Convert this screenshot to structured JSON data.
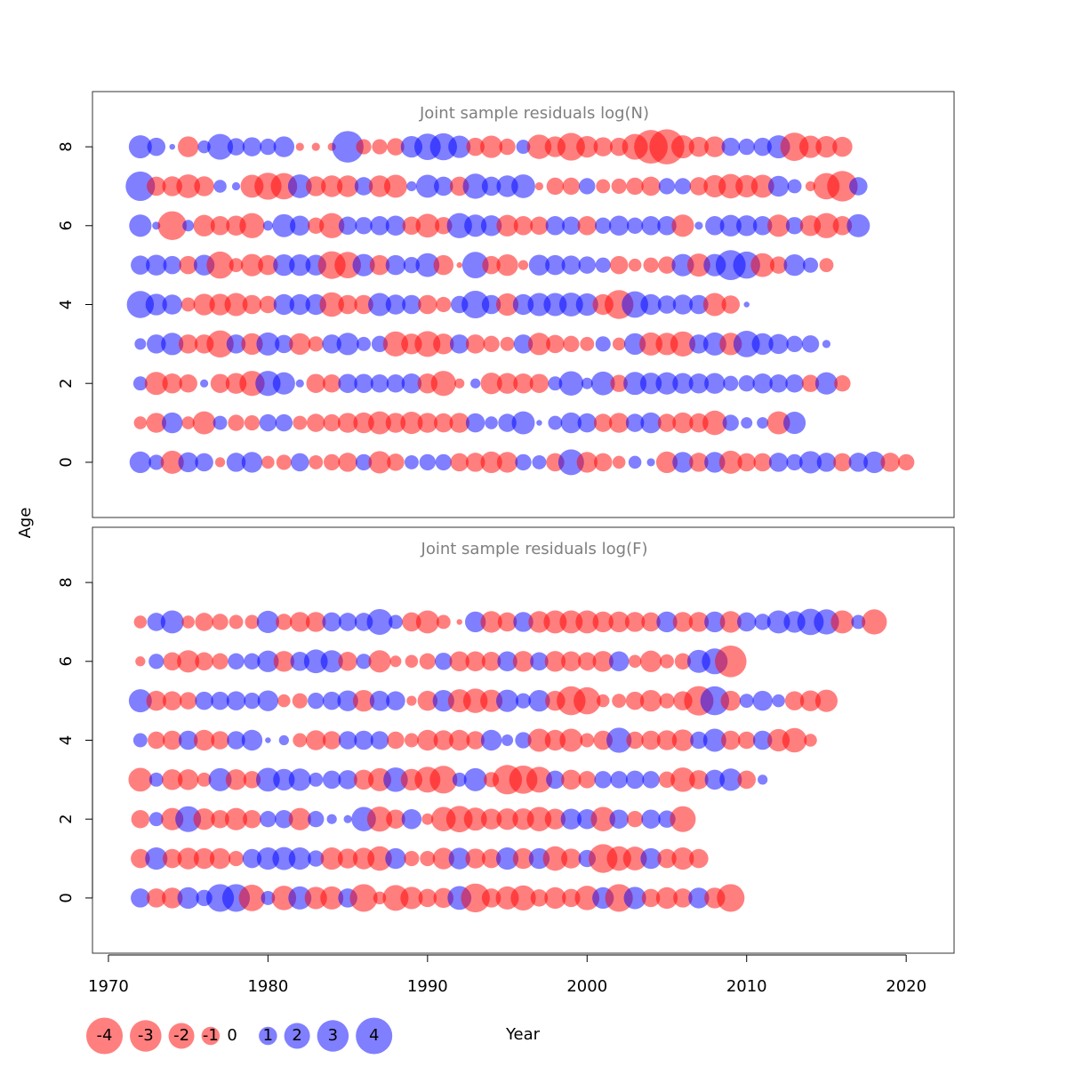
{
  "chart_data": {
    "type": "scatter",
    "subtype": "bubble",
    "xlabel": "Year",
    "ylabel": "Age",
    "xlim": [
      1969,
      2023
    ],
    "ylim": [
      -1.4,
      9.4
    ],
    "x_ticks": [
      1970,
      1980,
      1990,
      2000,
      2010,
      2020
    ],
    "y_ticks": [
      0,
      2,
      4,
      6,
      8
    ],
    "colors": {
      "positive": "#0000ff",
      "negative": "#ff0000",
      "opacity": 0.5
    },
    "size_scale_max": 4.6,
    "legend": {
      "values": [
        -4,
        -3,
        -2,
        -1,
        0,
        1,
        2,
        3,
        4
      ],
      "labels": [
        "-4",
        "-3",
        "-2",
        "-1",
        "0",
        "1",
        "2",
        "3",
        "4"
      ]
    },
    "panels": [
      {
        "title": "Joint sample residuals log(N)",
        "year_start": 1972,
        "ages": [
          8,
          7,
          6,
          5,
          4,
          3,
          2,
          1,
          0
        ],
        "residuals": [
          [
            1.6,
            1.0,
            0.1,
            -1.3,
            0.5,
            2.0,
            0.9,
            1.1,
            0.8,
            1.3,
            -0.2,
            -0.2,
            -0.2,
            3.0,
            -0.7,
            -0.7,
            -0.9,
            1.4,
            2.1,
            2.2,
            1.5,
            -1.0,
            -1.5,
            -0.8,
            0.6,
            -1.8,
            -1.3,
            -2.3,
            -1.4,
            -1.1,
            -1.0,
            -2.0,
            -3.4,
            -3.7,
            -1.6,
            -1.2,
            -1.3,
            1.0,
            0.8,
            1.0,
            1.6,
            -2.4,
            -1.5,
            -1.4,
            -1.2
          ],
          [
            2.6,
            -1.1,
            -1.2,
            -1.7,
            -1.2,
            0.5,
            0.2,
            -1.6,
            -2.2,
            -2.1,
            1.7,
            -1.2,
            -1.4,
            -1.4,
            1.0,
            -1.4,
            -1.6,
            0.3,
            1.6,
            1.1,
            -1.1,
            1.9,
            1.1,
            1.4,
            1.7,
            -0.2,
            -0.9,
            -0.9,
            0.8,
            -0.6,
            -0.7,
            -0.9,
            -1.1,
            0.8,
            0.8,
            -1.0,
            -1.5,
            -1.8,
            -1.5,
            -1.6,
            1.3,
            0.6,
            -0.3,
            -2.1,
            -2.8,
            1.0
          ],
          [
            1.5,
            0.2,
            -2.5,
            0.4,
            -1.4,
            -1.1,
            -1.2,
            -1.9,
            0.3,
            1.6,
            1.2,
            -0.8,
            -1.9,
            1.0,
            0.9,
            1.1,
            1.2,
            -1.0,
            -1.7,
            -0.9,
            1.9,
            1.5,
            1.3,
            -1.4,
            -1.1,
            -1.0,
            1.1,
            1.0,
            -1.1,
            0.8,
            1.2,
            0.8,
            1.1,
            1.1,
            -1.5,
            0.2,
            1.1,
            1.4,
            1.3,
            1.1,
            -1.5,
            0.9,
            -1.3,
            -1.9,
            -1.1,
            1.6
          ],
          [
            1.1,
            1.3,
            1.0,
            -1.0,
            1.3,
            -2.2,
            -0.6,
            -1.5,
            -1.2,
            1.4,
            1.4,
            1.3,
            -2.3,
            -2.1,
            1.5,
            -1.2,
            1.2,
            0.8,
            1.7,
            -1.2,
            -0.1,
            2.1,
            -1.0,
            -1.4,
            -0.3,
            1.3,
            1.2,
            1.1,
            0.9,
            0.7,
            -1.0,
            -0.5,
            -0.7,
            -0.9,
            1.5,
            -1.6,
            1.5,
            2.7,
            2.2,
            -1.7,
            -0.9,
            1.4,
            0.7,
            -0.6
          ],
          [
            2.2,
            1.4,
            1.2,
            -0.6,
            -1.4,
            -1.4,
            -1.6,
            -1.1,
            -0.9,
            1.3,
            1.3,
            1.3,
            -1.8,
            -1.1,
            -1.1,
            1.6,
            1.2,
            1.1,
            -1.1,
            -0.7,
            0.9,
            2.3,
            1.1,
            -1.5,
            1.3,
            1.6,
            1.6,
            1.7,
            1.5,
            -1.3,
            -2.5,
            2.1,
            1.3,
            1.0,
            1.2,
            1.1,
            -1.6,
            -1.0,
            0.1
          ],
          [
            0.4,
            1.1,
            1.5,
            -1.1,
            -1.1,
            -2.2,
            1.1,
            -1.4,
            1.6,
            1.0,
            -1.4,
            -0.7,
            1.1,
            1.5,
            0.6,
            0.8,
            -1.9,
            -1.3,
            -2.0,
            -1.3,
            1.1,
            -1.1,
            -0.8,
            -0.6,
            1.1,
            -1.5,
            -1.0,
            -0.8,
            -0.6,
            0.7,
            -0.5,
            1.4,
            -1.6,
            -1.5,
            -1.9,
            1.1,
            1.6,
            -1.5,
            2.1,
            1.4,
            1.2,
            0.8,
            0.9,
            0.2
          ],
          [
            0.6,
            -1.6,
            -1.2,
            -1.0,
            0.2,
            -1.1,
            -1.3,
            -1.9,
            1.9,
            1.5,
            0.2,
            -1.1,
            -1.0,
            1.1,
            1.1,
            1.0,
            1.0,
            1.2,
            -1.2,
            -1.9,
            -0.3,
            0.3,
            -1.4,
            -1.3,
            -1.2,
            -1.1,
            0.6,
            1.8,
            0.4,
            1.7,
            -0.9,
            1.6,
            1.4,
            1.5,
            1.3,
            1.2,
            1.3,
            0.7,
            0.8,
            1.2,
            1.0,
            1.0,
            -0.9,
            1.5,
            -0.8
          ],
          [
            -0.5,
            -1.2,
            1.3,
            -0.5,
            -1.6,
            0.6,
            -0.8,
            -0.7,
            0.9,
            0.9,
            -0.6,
            -1.0,
            -0.9,
            -1.2,
            -1.3,
            -1.6,
            -1.2,
            -1.5,
            -1.2,
            -1.1,
            -1.2,
            1.1,
            0.5,
            1.0,
            1.6,
            0.1,
            0.6,
            1.3,
            1.1,
            -1.0,
            -1.2,
            1.0,
            1.3,
            -1.0,
            -1.3,
            -1.1,
            -1.8,
            0.8,
            0.4,
            0.4,
            -1.6,
            1.5
          ],
          [
            1.4,
            0.7,
            -1.6,
            1.2,
            1.0,
            -0.3,
            1.1,
            1.3,
            -0.5,
            -0.7,
            1.0,
            -0.6,
            -0.8,
            -1.1,
            0.8,
            -1.5,
            -0.9,
            0.6,
            0.8,
            0.8,
            -1.0,
            -1.1,
            -1.4,
            -1.3,
            0.8,
            0.6,
            -1.0,
            2.0,
            -1.3,
            -1.0,
            -0.5,
            0.5,
            0.2,
            -1.4,
            1.3,
            -1.1,
            1.3,
            -1.6,
            -1.0,
            -1.0,
            1.1,
            0.8,
            1.5,
            1.1,
            -1.0,
            1.1,
            1.4,
            -1.1,
            -0.8
          ]
        ]
      },
      {
        "title": "Joint sample residuals log(F)",
        "year_start": 1972,
        "ages": [
          7,
          6,
          5,
          4,
          3,
          2,
          1,
          0
        ],
        "residuals": [
          [
            -0.5,
            1.0,
            1.6,
            -0.5,
            -1.0,
            -0.8,
            -0.6,
            -0.6,
            1.5,
            -0.8,
            -1.2,
            -1.2,
            1.1,
            1.0,
            1.0,
            2.0,
            0.6,
            -1.1,
            -1.6,
            -0.6,
            -0.1,
            1.3,
            -1.4,
            -1.1,
            1.2,
            -1.4,
            -1.6,
            -1.6,
            -1.6,
            -1.3,
            -1.3,
            -1.2,
            -1.1,
            1.3,
            -1.2,
            -1.2,
            1.3,
            -1.4,
            1.1,
            0.8,
            1.6,
            1.4,
            2.1,
            1.9,
            -1.6,
            0.6,
            -1.9
          ],
          [
            -0.3,
            0.7,
            -1.0,
            -1.5,
            -1.0,
            -0.8,
            0.8,
            0.8,
            1.4,
            -1.3,
            1.1,
            1.7,
            1.5,
            -1.1,
            0.7,
            -1.5,
            -0.4,
            -0.5,
            -0.8,
            0.9,
            -1.2,
            -1.2,
            -1.1,
            1.2,
            -1.3,
            1.0,
            -1.3,
            -1.2,
            -1.0,
            -1.3,
            1.2,
            -0.5,
            -1.4,
            -0.6,
            -0.8,
            1.6,
            2.0,
            -3.0
          ],
          [
            1.6,
            -1.2,
            -1.1,
            -0.9,
            1.0,
            1.0,
            1.1,
            0.8,
            1.3,
            -0.5,
            -0.7,
            0.8,
            1.0,
            1.3,
            -1.4,
            1.2,
            1.1,
            -0.3,
            -1.2,
            1.4,
            -1.6,
            -1.8,
            -1.5,
            1.5,
            0.7,
            1.4,
            -1.2,
            -2.5,
            -2.2,
            -0.5,
            -0.6,
            -1.0,
            -1.4,
            -0.7,
            -1.1,
            -2.6,
            2.5,
            -1.2,
            0.6,
            1.2,
            0.5,
            -1.1,
            -1.3,
            -1.5
          ],
          [
            0.6,
            -0.9,
            -1.1,
            1.1,
            -1.3,
            -1.0,
            1.0,
            1.3,
            0.1,
            0.3,
            -0.6,
            -1.2,
            -1.0,
            1.0,
            1.1,
            1.0,
            -0.9,
            -0.6,
            -1.3,
            -1.2,
            -1.3,
            -1.0,
            1.3,
            0.4,
            0.8,
            -1.6,
            -1.3,
            -1.6,
            -0.6,
            -1.1,
            1.9,
            -0.9,
            -1.1,
            -1.2,
            -1.4,
            0.9,
            1.6,
            -1.1,
            -0.9,
            1.1,
            -1.5,
            -1.8,
            -0.5
          ],
          [
            -1.7,
            0.6,
            -1.3,
            -1.3,
            -0.6,
            1.6,
            -1.3,
            -0.9,
            1.7,
            1.4,
            1.5,
            0.6,
            1.0,
            1.1,
            -1.2,
            -1.6,
            1.8,
            -1.4,
            -2.0,
            -2.3,
            0.6,
            1.6,
            -0.7,
            -2.6,
            -2.4,
            -2.0,
            1.0,
            -1.2,
            -0.9,
            0.9,
            0.9,
            1.0,
            0.9,
            -0.8,
            -1.8,
            -1.1,
            1.2,
            1.5,
            -1.0,
            0.3
          ],
          [
            -1.0,
            0.6,
            -1.5,
            2.0,
            -1.4,
            -1.0,
            -1.5,
            -1.0,
            0.8,
            1.0,
            -1.5,
            0.8,
            0.3,
            0.2,
            1.8,
            -1.9,
            -1.1,
            1.2,
            -0.4,
            -1.8,
            -2.1,
            -1.6,
            -1.3,
            -1.4,
            -1.4,
            -1.8,
            -1.3,
            1.3,
            1.2,
            -1.8,
            1.1,
            -0.8,
            1.1,
            0.9,
            -2.0
          ],
          [
            -1.1,
            1.5,
            -1.1,
            -1.4,
            -1.3,
            -1.3,
            -0.7,
            1.1,
            1.5,
            1.6,
            1.5,
            0.8,
            -1.5,
            -1.2,
            -1.4,
            -1.8,
            1.3,
            -0.7,
            -0.7,
            -1.4,
            1.4,
            -1.2,
            -1.1,
            1.5,
            -1.3,
            1.3,
            -1.8,
            -1.2,
            0.9,
            -2.5,
            -1.8,
            -1.7,
            1.3,
            -1.1,
            -1.5,
            -1.1
          ],
          [
            1.1,
            -1.1,
            -1.3,
            1.4,
            0.8,
            2.3,
            2.3,
            -2.1,
            0.6,
            -1.8,
            1.6,
            -1.5,
            -1.6,
            1.1,
            -2.3,
            -0.5,
            -2.0,
            -1.5,
            -1.0,
            -1.2,
            1.7,
            -2.5,
            -1.1,
            -1.6,
            -1.9,
            -0.9,
            -1.4,
            -1.0,
            -1.8,
            1.4,
            -2.3,
            1.5,
            -1.0,
            -1.4,
            -1.1,
            1.3,
            -1.3,
            -2.3
          ]
        ]
      }
    ]
  }
}
